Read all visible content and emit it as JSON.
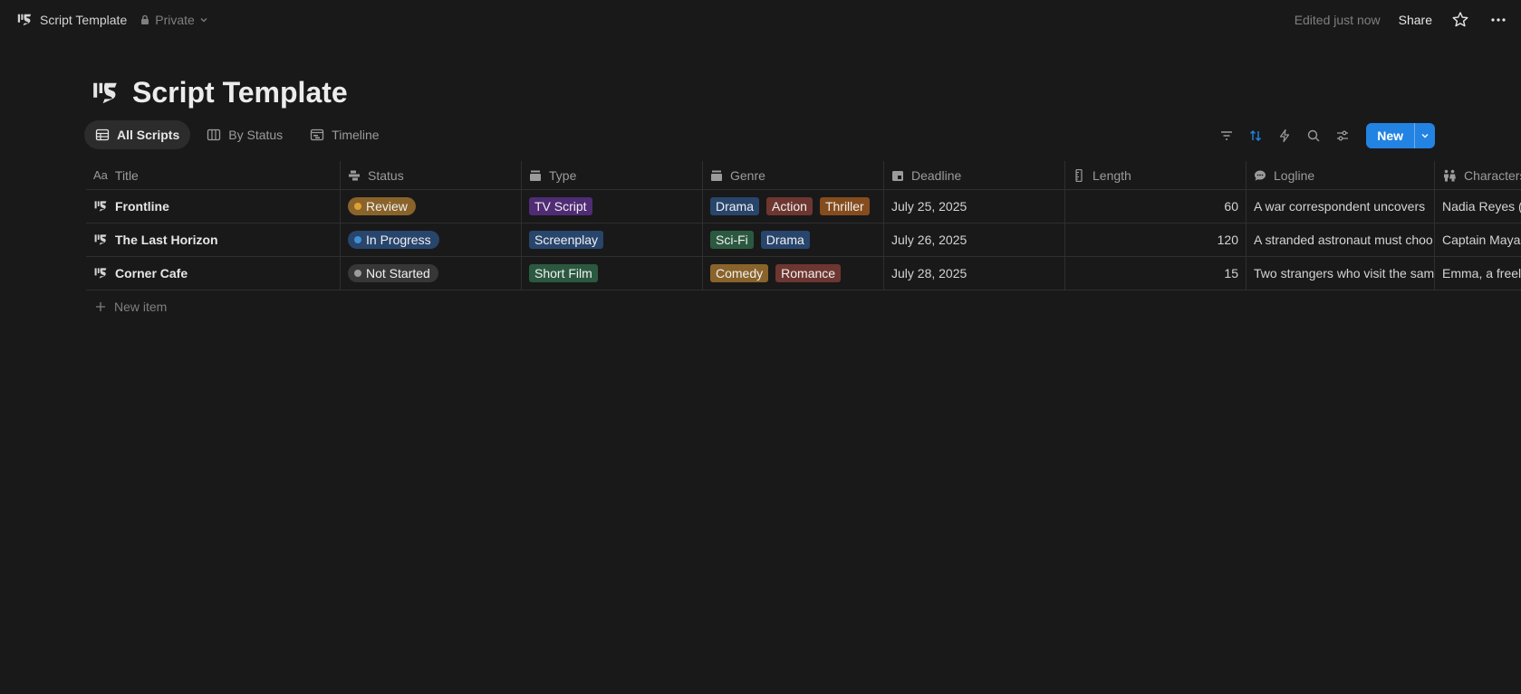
{
  "topbar": {
    "title": "Script Template",
    "privacy": "Private",
    "edited": "Edited just now",
    "share": "Share"
  },
  "page": {
    "title": "Script Template"
  },
  "views": [
    {
      "label": "All Scripts",
      "icon": "table-icon"
    },
    {
      "label": "By Status",
      "icon": "board-icon"
    },
    {
      "label": "Timeline",
      "icon": "timeline-icon"
    }
  ],
  "toolbar": {
    "new_label": "New"
  },
  "columns": {
    "title": "Title",
    "status": "Status",
    "type": "Type",
    "genre": "Genre",
    "deadline": "Deadline",
    "length": "Length",
    "logline": "Logline",
    "characters": "Characters"
  },
  "rows": [
    {
      "title": "Frontline",
      "status": {
        "label": "Review",
        "bg": "#89632a",
        "dot": "#dda231"
      },
      "type": {
        "label": "TV Script",
        "bg": "#4f2c74"
      },
      "genres": [
        {
          "label": "Drama",
          "bg": "#28456c"
        },
        {
          "label": "Action",
          "bg": "#6e3630"
        },
        {
          "label": "Thriller",
          "bg": "#854c1d"
        }
      ],
      "deadline": "July 25, 2025",
      "length": "60",
      "logline": "A war correspondent uncovers",
      "characters": "Nadia Reyes (co"
    },
    {
      "title": "The Last Horizon",
      "status": {
        "label": "In Progress",
        "bg": "#28456c",
        "dot": "#3f8fd6"
      },
      "type": {
        "label": "Screenplay",
        "bg": "#28456c"
      },
      "genres": [
        {
          "label": "Sci-Fi",
          "bg": "#2b5940"
        },
        {
          "label": "Drama",
          "bg": "#28456c"
        }
      ],
      "deadline": "July 26, 2025",
      "length": "120",
      "logline": "A stranded astronaut must choo",
      "characters": "Captain Maya C"
    },
    {
      "title": "Corner Cafe",
      "status": {
        "label": "Not Started",
        "bg": "#373737",
        "dot": "#9b9b9b"
      },
      "type": {
        "label": "Short Film",
        "bg": "#2b5940"
      },
      "genres": [
        {
          "label": "Comedy",
          "bg": "#89632a"
        },
        {
          "label": "Romance",
          "bg": "#6e3630"
        }
      ],
      "deadline": "July 28, 2025",
      "length": "15",
      "logline": "Two strangers who visit the sam",
      "characters": "Emma, a freelan"
    }
  ],
  "new_item": "New item"
}
